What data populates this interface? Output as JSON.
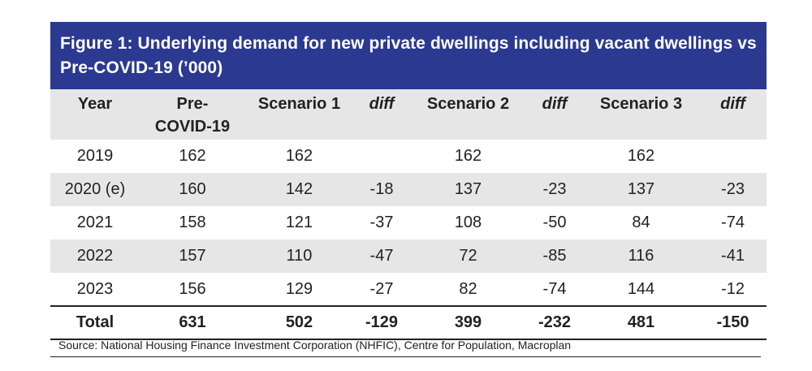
{
  "title": "Figure 1: Underlying demand for new private dwellings including vacant dwellings vs Pre-COVID-19 (’000)",
  "columns": [
    "Year",
    "Pre-\nCOVID-19",
    "Scenario 1",
    "diff",
    "Scenario 2",
    "diff",
    "Scenario 3",
    "diff"
  ],
  "rows": [
    [
      "2019",
      "162",
      "162",
      "",
      "162",
      "",
      "162",
      ""
    ],
    [
      "2020 (e)",
      "160",
      "142",
      "-18",
      "137",
      "-23",
      "137",
      "-23"
    ],
    [
      "2021",
      "158",
      "121",
      "-37",
      "108",
      "-50",
      "84",
      "-74"
    ],
    [
      "2022",
      "157",
      "110",
      "-47",
      "72",
      "-85",
      "116",
      "-41"
    ],
    [
      "2023",
      "156",
      "129",
      "-27",
      "82",
      "-74",
      "144",
      "-12"
    ]
  ],
  "total": [
    "Total",
    "631",
    "502",
    "-129",
    "399",
    "-232",
    "481",
    "-150"
  ],
  "source": "Source: National Housing Finance Investment Corporation (NHFIC), Centre for Population, Macroplan"
}
